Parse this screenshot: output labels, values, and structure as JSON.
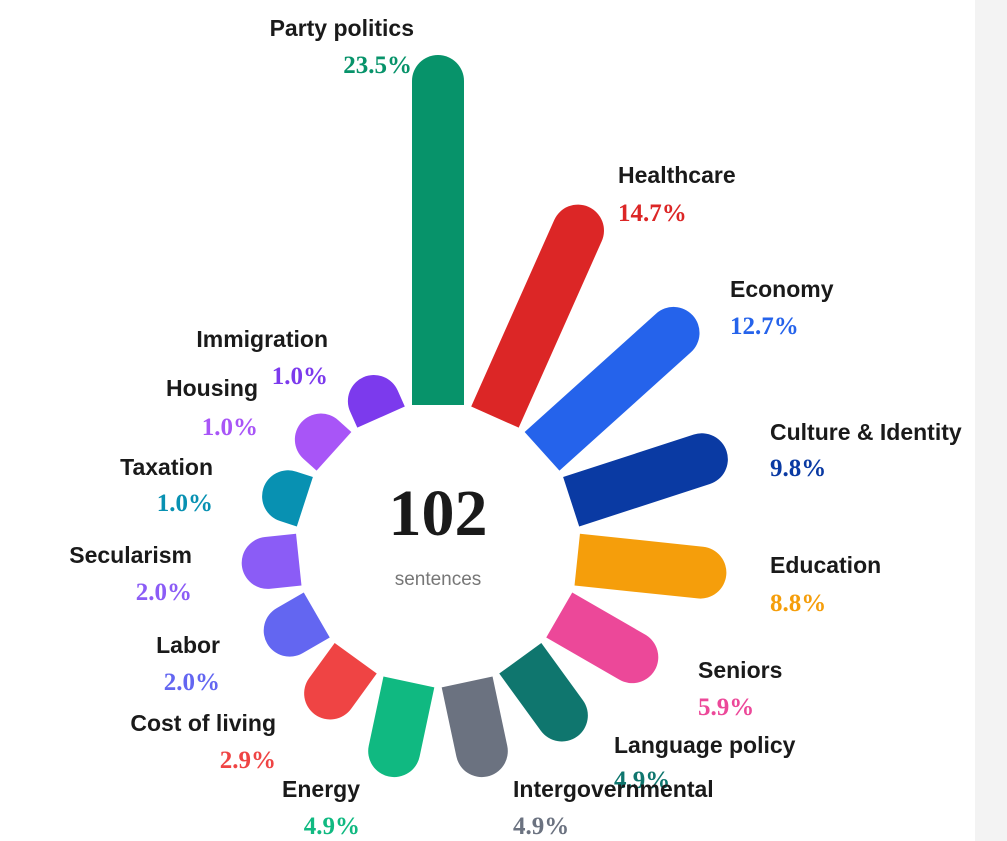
{
  "chart_data": {
    "type": "radial_bar",
    "total": 102,
    "total_label": "sentences",
    "categories": [
      "Party politics",
      "Healthcare",
      "Economy",
      "Culture & Identity",
      "Education",
      "Seniors",
      "Language policy",
      "Intergovernmental",
      "Energy",
      "Cost of living",
      "Labor",
      "Secularism",
      "Taxation",
      "Housing",
      "Immigration"
    ],
    "values": [
      23.5,
      14.7,
      12.7,
      9.8,
      8.8,
      5.9,
      4.9,
      4.9,
      4.9,
      2.9,
      2.0,
      2.0,
      1.0,
      1.0,
      1.0
    ],
    "value_labels": [
      "23.5%",
      "14.7%",
      "12.7%",
      "9.8%",
      "8.8%",
      "5.9%",
      "4.9%",
      "4.9%",
      "4.9%",
      "2.9%",
      "2.0%",
      "2.0%",
      "1.0%",
      "1.0%",
      "1.0%"
    ],
    "colors": [
      "#07936a",
      "#dc2626",
      "#2563eb",
      "#0a3aa3",
      "#f59e0b",
      "#ec4899",
      "#0f766e",
      "#6b7280",
      "#10b981",
      "#ef4444",
      "#6366f1",
      "#8b5cf6",
      "#0891b2",
      "#a855f7",
      "#7c3aed"
    ]
  }
}
